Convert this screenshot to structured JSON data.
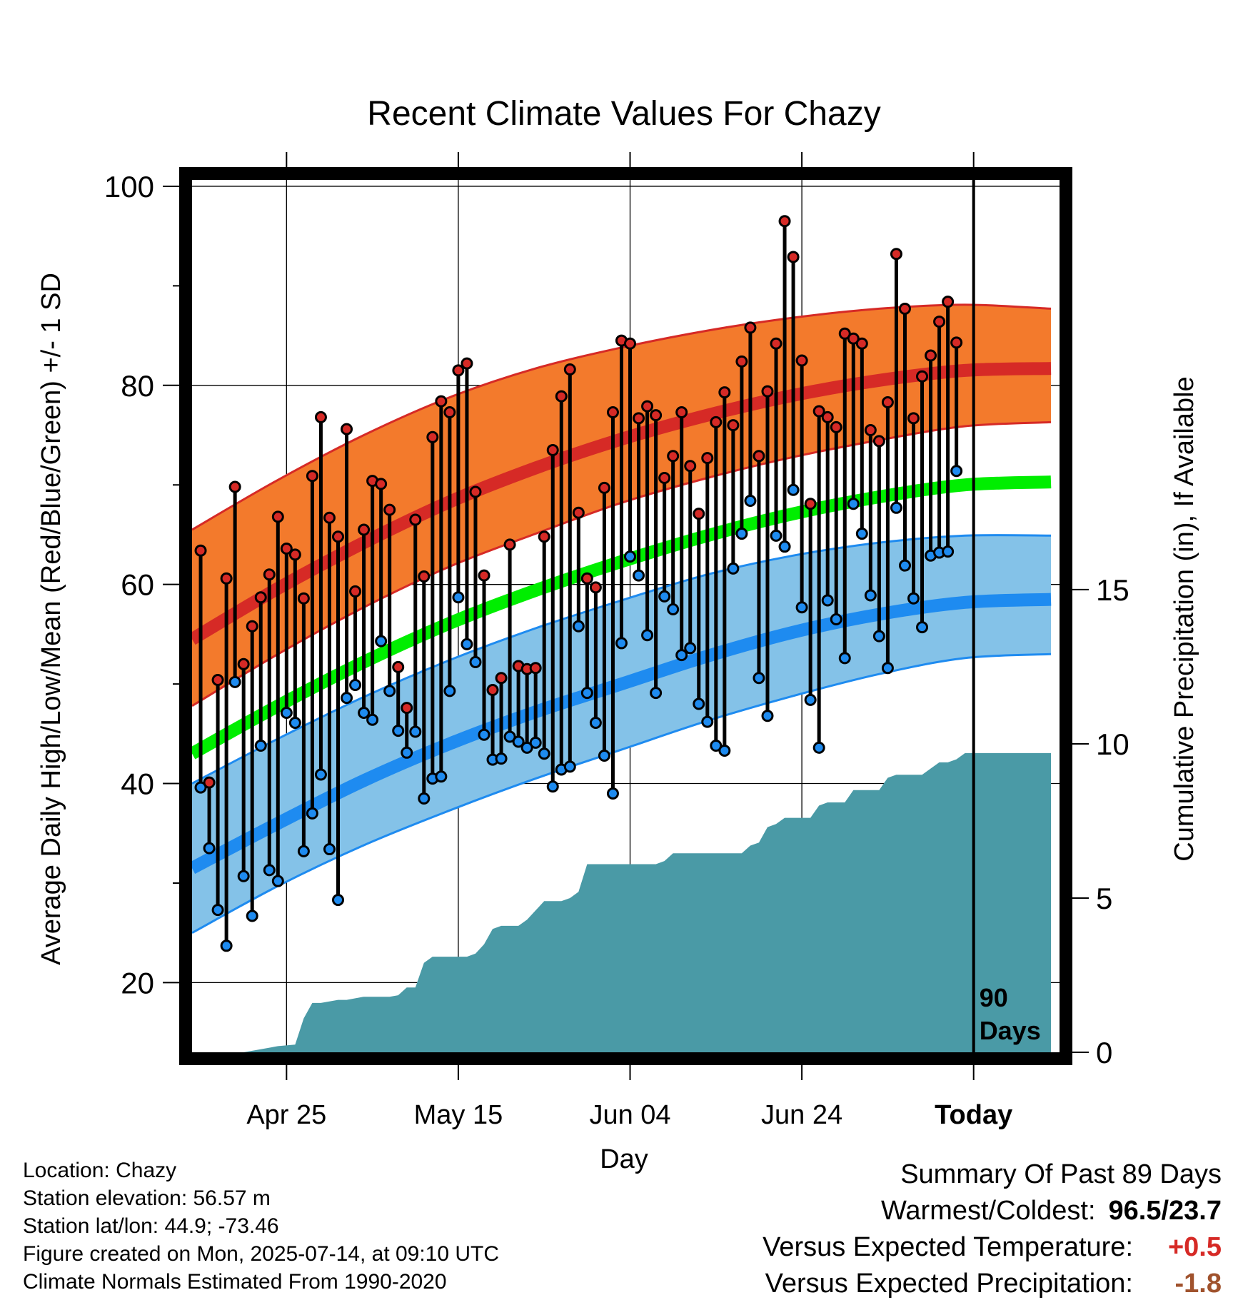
{
  "title": "Recent Climate Values For Chazy",
  "xlabel": "Day",
  "ylabel_left": "Average Daily High/Low/Mean (Red/Blue/Green) +/- 1 SD",
  "ylabel_right": "Cumulative Precipitation (in), If Available",
  "today_marker": {
    "label_line1": "90",
    "label_line2": "Days"
  },
  "info": {
    "location": "Location: Chazy",
    "elevation": "Station elevation: 56.57 m",
    "latlon": "Station lat/lon: 44.9; -73.46",
    "created": "Figure created on Mon, 2025-07-14, at 09:10 UTC",
    "normals": "Climate Normals Estimated From 1990-2020"
  },
  "summary": {
    "heading": "Summary Of Past 89 Days",
    "warm_cold_label": "Warmest/Coldest:",
    "warm_cold_value": "96.5/23.7",
    "temp_label": "Versus Expected Temperature:",
    "temp_value": "+0.5",
    "precip_label": "Versus Expected Precipitation:",
    "precip_value": "-1.8"
  },
  "colors": {
    "high_band": "#f37a2c",
    "high_line": "#d62a26",
    "mean_line": "#00ee00",
    "low_band": "#84c2e8",
    "low_line": "#1e8bf0",
    "precip_fill": "#4a9aa6",
    "temp_positive": "#d62a26",
    "precip_negative": "#a0522d"
  },
  "chart_data": {
    "type": "line",
    "x_start": "Apr 14",
    "x_tick_labels": [
      "Apr 25",
      "May 15",
      "Jun 04",
      "Jun 24",
      "Today"
    ],
    "x_tick_day_index": [
      10,
      30,
      50,
      70,
      90
    ],
    "x_range_days": [
      -1,
      100
    ],
    "ylim_left": [
      13,
      101
    ],
    "y_ticks_left": [
      20,
      40,
      60,
      80,
      100
    ],
    "ylim_right": [
      0,
      28.4
    ],
    "y_ticks_right": [
      0,
      5,
      10,
      15
    ],
    "grid": true,
    "normals": {
      "day": [
        -1,
        9,
        19,
        29,
        39,
        49,
        59,
        69,
        79,
        89,
        99
      ],
      "high_mean": [
        54.5,
        59.6,
        64.2,
        68.3,
        71.7,
        74.6,
        77.0,
        79.0,
        80.5,
        81.5,
        81.7
      ],
      "high_upper": [
        65.5,
        70.5,
        75.0,
        78.8,
        81.7,
        83.8,
        85.5,
        86.8,
        87.7,
        88.1,
        87.7
      ],
      "high_lower": [
        47.8,
        53.0,
        57.7,
        61.8,
        65.1,
        68.2,
        70.7,
        72.8,
        74.5,
        75.9,
        76.3
      ],
      "mean": [
        43.0,
        47.8,
        52.2,
        56.1,
        59.4,
        62.3,
        64.9,
        67.1,
        68.8,
        70.0,
        70.3
      ],
      "low_mean": [
        31.5,
        36.0,
        40.3,
        44.0,
        47.2,
        50.0,
        52.8,
        55.2,
        57.0,
        58.2,
        58.5
      ],
      "low_upper": [
        40.0,
        44.5,
        48.7,
        52.4,
        55.6,
        58.4,
        61.0,
        62.9,
        64.2,
        64.9,
        64.9
      ],
      "low_lower": [
        25.0,
        29.7,
        33.8,
        37.3,
        40.5,
        43.4,
        46.3,
        48.8,
        51.0,
        52.6,
        53.0
      ]
    },
    "series": [
      {
        "name": "High",
        "values": [
          63.4,
          40.1,
          50.4,
          60.6,
          69.8,
          52.0,
          55.8,
          58.7,
          61.0,
          66.8,
          63.6,
          63.0,
          58.6,
          70.9,
          76.8,
          66.7,
          64.8,
          75.6,
          59.3,
          65.5,
          70.4,
          70.1,
          67.5,
          51.7,
          47.6,
          66.5,
          60.8,
          74.8,
          78.4,
          77.3,
          81.5,
          82.2,
          69.3,
          60.9,
          49.4,
          50.6,
          64.0,
          51.8,
          51.5,
          51.6,
          64.8,
          73.5,
          78.9,
          81.6,
          67.2,
          60.6,
          59.7,
          69.7,
          77.3,
          84.5,
          84.2,
          76.7,
          77.9,
          77.0,
          70.7,
          72.9,
          77.3,
          71.9,
          67.1,
          72.7,
          76.3,
          79.3,
          76.0,
          82.4,
          85.8,
          72.9,
          79.4,
          84.2,
          96.5,
          92.9,
          82.5,
          68.1,
          77.4,
          76.8,
          75.8,
          85.2,
          84.7,
          84.2,
          75.5,
          74.4,
          78.3,
          93.2,
          87.7,
          76.7,
          80.9,
          83.0,
          86.4,
          88.4,
          84.3
        ]
      },
      {
        "name": "Low",
        "values": [
          39.6,
          33.5,
          27.3,
          23.7,
          50.2,
          30.7,
          26.7,
          43.8,
          31.3,
          30.2,
          47.1,
          46.1,
          33.2,
          37.0,
          40.9,
          33.4,
          28.3,
          48.6,
          49.9,
          47.1,
          46.4,
          54.3,
          49.3,
          45.3,
          43.1,
          45.2,
          38.5,
          40.5,
          40.7,
          49.3,
          58.7,
          54.0,
          52.2,
          44.9,
          42.4,
          42.5,
          44.7,
          44.2,
          43.6,
          44.1,
          43.0,
          39.7,
          41.4,
          41.7,
          55.8,
          49.1,
          46.1,
          42.8,
          39.0,
          54.1,
          62.8,
          60.9,
          54.9,
          49.1,
          58.8,
          57.5,
          52.9,
          53.6,
          48.0,
          46.2,
          43.8,
          43.3,
          61.6,
          65.1,
          68.4,
          50.6,
          46.8,
          64.9,
          63.8,
          69.5,
          57.7,
          48.4,
          43.6,
          58.4,
          56.5,
          52.6,
          68.1,
          65.1,
          58.9,
          54.8,
          51.6,
          67.7,
          61.9,
          58.6,
          55.7,
          62.9,
          63.2,
          63.3,
          71.4
        ]
      }
    ],
    "precip_cumulative": {
      "day": [
        -1,
        5,
        7,
        9,
        11,
        12,
        13,
        14,
        15,
        16,
        17,
        18,
        19,
        20,
        21,
        22,
        23,
        24,
        25,
        26,
        27,
        28,
        29,
        30,
        31,
        32,
        33,
        34,
        35,
        36,
        37,
        38,
        39,
        40,
        41,
        42,
        43,
        44,
        45,
        46,
        47,
        48,
        49,
        50,
        51,
        52,
        53,
        54,
        55,
        56,
        57,
        58,
        59,
        60,
        61,
        62,
        63,
        64,
        65,
        66,
        67,
        68,
        69,
        70,
        71,
        72,
        73,
        74,
        75,
        76,
        77,
        78,
        79,
        80,
        81,
        82,
        83,
        84,
        85,
        86,
        87,
        88,
        89,
        90,
        99
      ],
      "values": [
        0.0,
        0.0,
        0.1,
        0.2,
        0.25,
        1.1,
        1.6,
        1.6,
        1.65,
        1.7,
        1.7,
        1.75,
        1.8,
        1.8,
        1.8,
        1.8,
        1.85,
        2.1,
        2.1,
        2.9,
        3.1,
        3.1,
        3.1,
        3.1,
        3.1,
        3.2,
        3.5,
        4.0,
        4.1,
        4.1,
        4.1,
        4.3,
        4.6,
        4.9,
        4.9,
        4.9,
        5.0,
        5.2,
        6.1,
        6.1,
        6.1,
        6.1,
        6.1,
        6.1,
        6.1,
        6.1,
        6.1,
        6.2,
        6.45,
        6.45,
        6.45,
        6.45,
        6.45,
        6.45,
        6.45,
        6.45,
        6.45,
        6.7,
        6.8,
        7.3,
        7.4,
        7.6,
        7.6,
        7.6,
        7.6,
        8.0,
        8.1,
        8.1,
        8.1,
        8.5,
        8.5,
        8.5,
        8.5,
        8.9,
        9.0,
        9.0,
        9.0,
        9.0,
        9.2,
        9.4,
        9.4,
        9.5,
        9.7,
        9.7,
        9.7
      ]
    }
  }
}
